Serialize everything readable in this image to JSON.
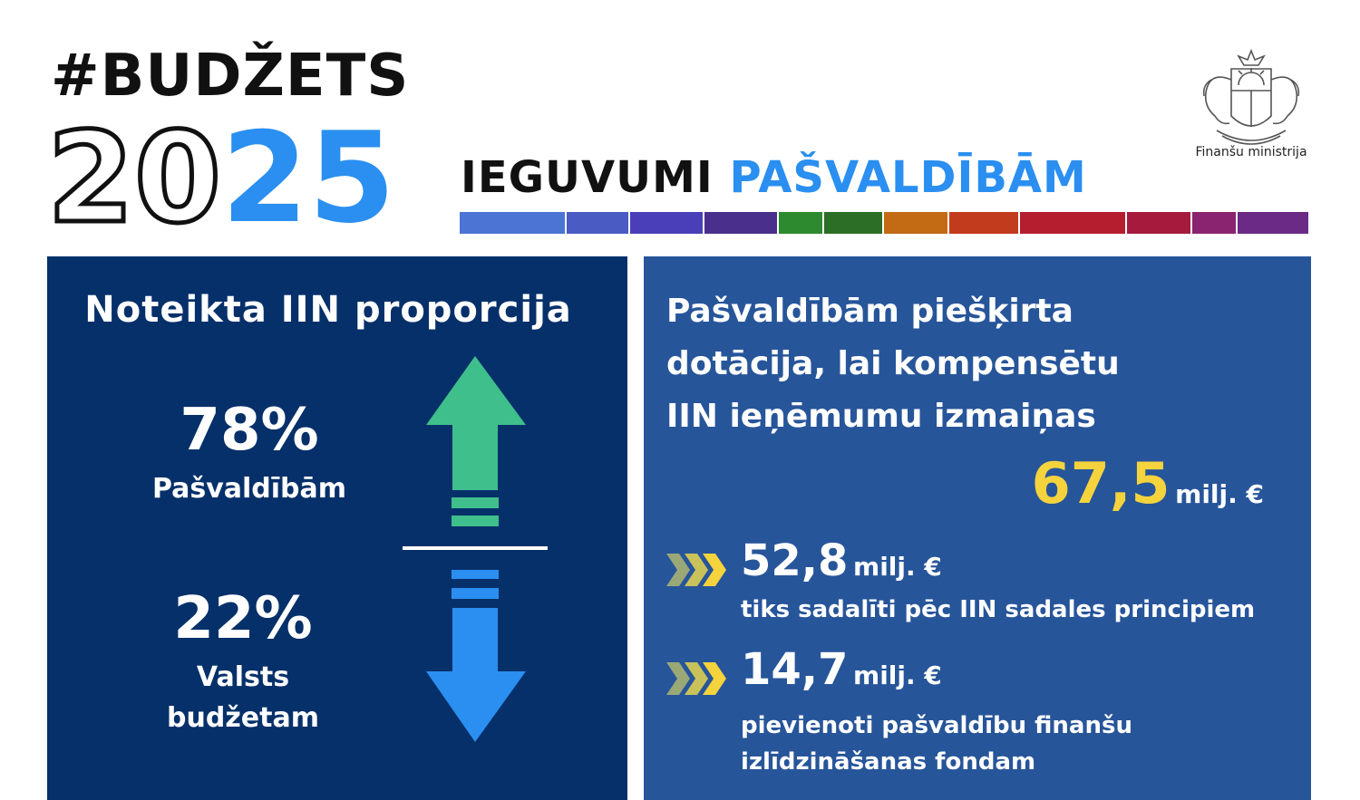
{
  "header": {
    "hashtag": "#BUDŽETS",
    "year_outline": "20",
    "year_blue": "25",
    "subtitle_dark": "IEGUVUMI",
    "subtitle_accent": "PAŠVALDĪBĀM"
  },
  "colors": {
    "accent": "#2a8ff0",
    "left_panel": "#06306a",
    "right_panel": "#27559a",
    "highlight": "#f5d33d",
    "arrow_up": "#3fbf8c",
    "arrow_down": "#2a8ff0",
    "colorbar": [
      "#4b74d4",
      "#4a5bc4",
      "#4a3fb8",
      "#4a2f8c",
      "#2e8a2e",
      "#2c6e26",
      "#c26a14",
      "#c23b1c",
      "#b51e2e",
      "#a61a3e",
      "#8a2470",
      "#6a2a86"
    ]
  },
  "logo": {
    "icon": "latvian-coat-of-arms-icon",
    "caption": "Finanšu ministrija"
  },
  "left_panel": {
    "title": "Noteikta IIN proporcija",
    "top_value": "78%",
    "top_label": "Pašvaldībām",
    "bottom_value": "22%",
    "bottom_label_line1": "Valsts",
    "bottom_label_line2": "budžetam"
  },
  "right_panel": {
    "title_line1": "Pašvaldībām piešķirta",
    "title_line2": "dotācija, lai kompensētu",
    "title_line3": "IIN ieņēmumu izmaiņas",
    "total_value": "67,5",
    "total_unit": "milj. €",
    "items": [
      {
        "value": "52,8",
        "unit": "milj. €",
        "desc_line1": "tiks sadalīti pēc IIN sadales principiem",
        "desc_line2": ""
      },
      {
        "value": "14,7",
        "unit": "milj. €",
        "desc_line1": "pievienoti pašvaldību finanšu",
        "desc_line2": "izlīdzināšanas fondam"
      }
    ]
  }
}
